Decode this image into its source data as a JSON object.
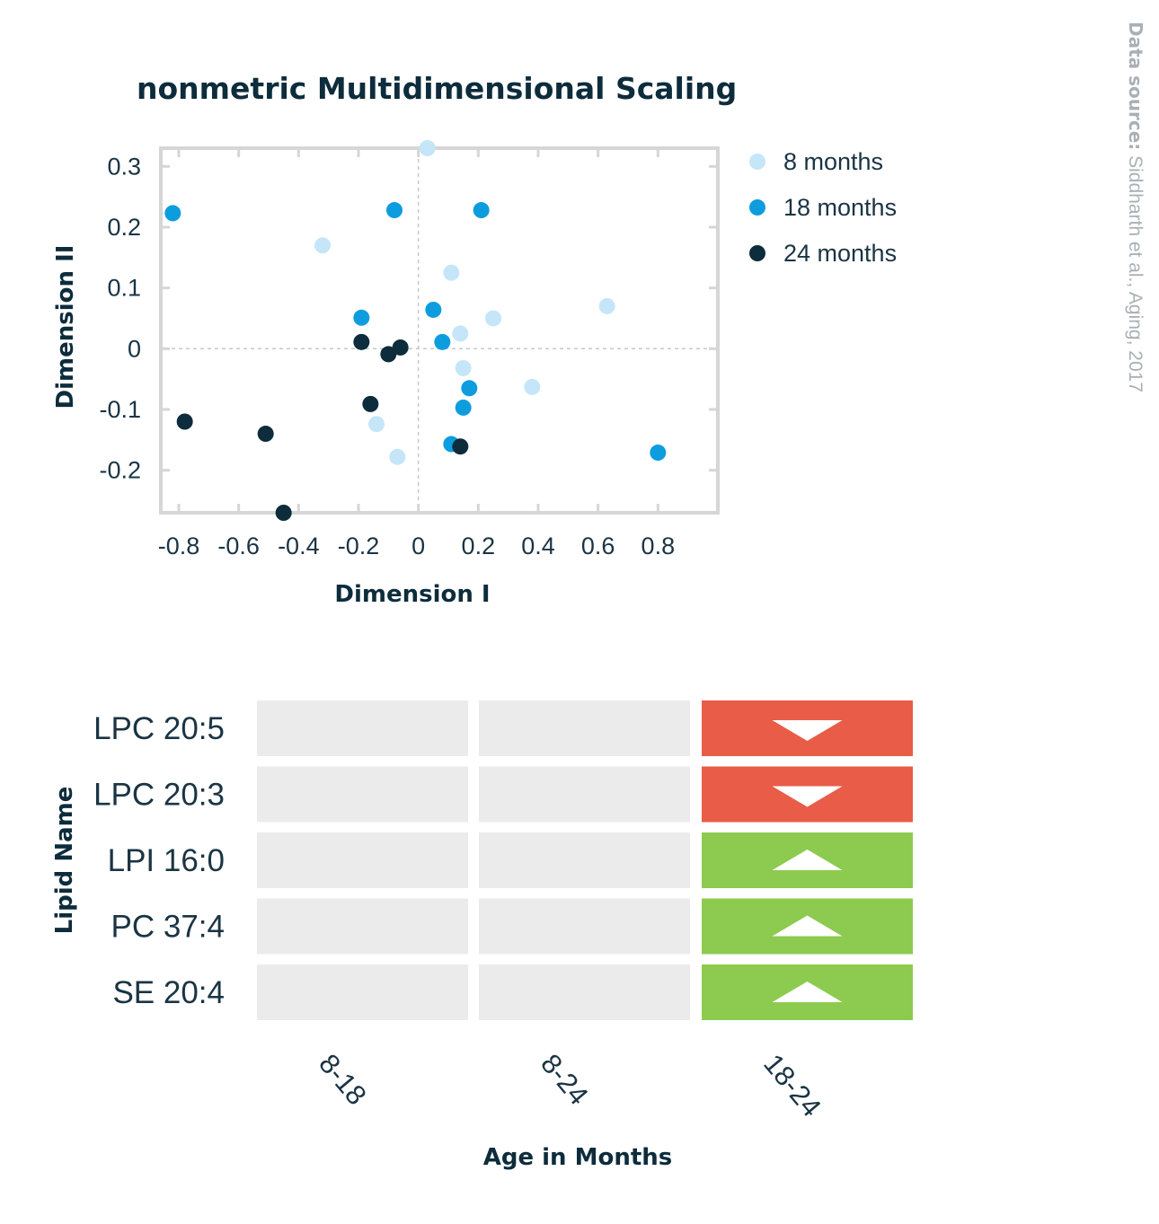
{
  "source": {
    "label": "Data source:",
    "text": " Siddharth et al., Aging, 2017"
  },
  "chart_data": [
    {
      "type": "scatter",
      "title": "nonmetric Multidimensional Scaling",
      "xlabel": "Dimension I",
      "ylabel": "Dimension II",
      "xlim": [
        -0.86,
        1.0
      ],
      "ylim": [
        -0.27,
        0.33
      ],
      "xticks": [
        -0.8,
        -0.6,
        -0.4,
        -0.2,
        0,
        0.2,
        0.4,
        0.6,
        0.8
      ],
      "xtick_labels": [
        "-0.8",
        "-0.6",
        "-0.4",
        "-0.2",
        "0",
        "0.2",
        "0.4",
        "0.6",
        "0.8"
      ],
      "yticks": [
        0.3,
        0.2,
        0.1,
        0,
        -0.1,
        -0.2
      ],
      "ytick_labels": [
        "0.3",
        "0.2",
        "0.1",
        "0",
        "-0.1",
        "-0.2"
      ],
      "grid": false,
      "zero_lines": true,
      "legend_position": "right",
      "series": [
        {
          "name": "8 months",
          "color": "#c4e6f8",
          "points": [
            [
              0.03,
              0.33
            ],
            [
              -0.32,
              0.17
            ],
            [
              0.11,
              0.125
            ],
            [
              0.63,
              0.07
            ],
            [
              0.25,
              0.05
            ],
            [
              0.14,
              0.025
            ],
            [
              0.15,
              -0.032
            ],
            [
              0.38,
              -0.063
            ],
            [
              -0.14,
              -0.124
            ],
            [
              -0.07,
              -0.178
            ]
          ]
        },
        {
          "name": "18 months",
          "color": "#0d9ddf",
          "points": [
            [
              -0.82,
              0.223
            ],
            [
              -0.08,
              0.228
            ],
            [
              0.21,
              0.228
            ],
            [
              -0.19,
              0.051
            ],
            [
              0.05,
              0.064
            ],
            [
              0.08,
              0.011
            ],
            [
              0.17,
              -0.065
            ],
            [
              0.15,
              -0.097
            ],
            [
              0.11,
              -0.157
            ],
            [
              0.8,
              -0.171
            ]
          ]
        },
        {
          "name": "24 months",
          "color": "#0d2c3c",
          "points": [
            [
              -0.19,
              0.011
            ],
            [
              -0.1,
              -0.009
            ],
            [
              -0.06,
              0.002
            ],
            [
              -0.16,
              -0.091
            ],
            [
              -0.78,
              -0.12
            ],
            [
              -0.51,
              -0.14
            ],
            [
              0.14,
              -0.161
            ],
            [
              -0.45,
              -0.27
            ]
          ]
        }
      ]
    },
    {
      "type": "table",
      "xlabel": "Age in Months",
      "ylabel": "Lipid Name",
      "rows": [
        "LPC 20:5",
        "LPC 20:3",
        "LPI 16:0",
        "PC 37:4",
        "SE 20:4"
      ],
      "columns": [
        "8-18",
        "8-24",
        "18-24"
      ],
      "cells": [
        [
          "none",
          "none",
          "down"
        ],
        [
          "none",
          "none",
          "down"
        ],
        [
          "none",
          "none",
          "up"
        ],
        [
          "none",
          "none",
          "up"
        ],
        [
          "none",
          "none",
          "up"
        ]
      ],
      "colors": {
        "none": "#ebebeb",
        "down": "#e85c48",
        "up": "#8dcb50"
      }
    }
  ]
}
